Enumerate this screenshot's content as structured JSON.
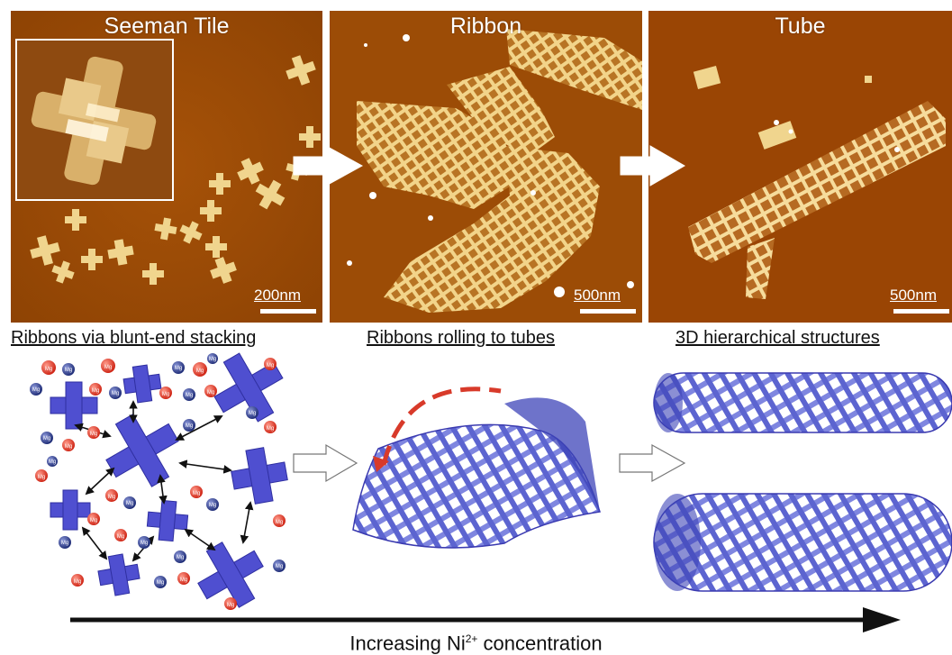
{
  "panels": [
    {
      "title": "Seeman Tile",
      "scale": "200nm"
    },
    {
      "title": "Ribbon",
      "scale": "500nm"
    },
    {
      "title": "Tube",
      "scale": "500nm"
    }
  ],
  "captions": {
    "tile": "Ribbons via blunt-end stacking",
    "ribbon": "Ribbons rolling to tubes",
    "tube": "3D hierarchical structures"
  },
  "ion_label": "Mg",
  "axis": {
    "prefix": "Increasing Ni",
    "superscript": "2+",
    "suffix": " concentration"
  },
  "colors": {
    "afm_background": "#9a4a06",
    "dna_blue": "#4f4fd0",
    "ion_red": "#d83a2a",
    "ion_navy": "#2c3a8a",
    "rolling_arrow": "#d83a2a"
  }
}
